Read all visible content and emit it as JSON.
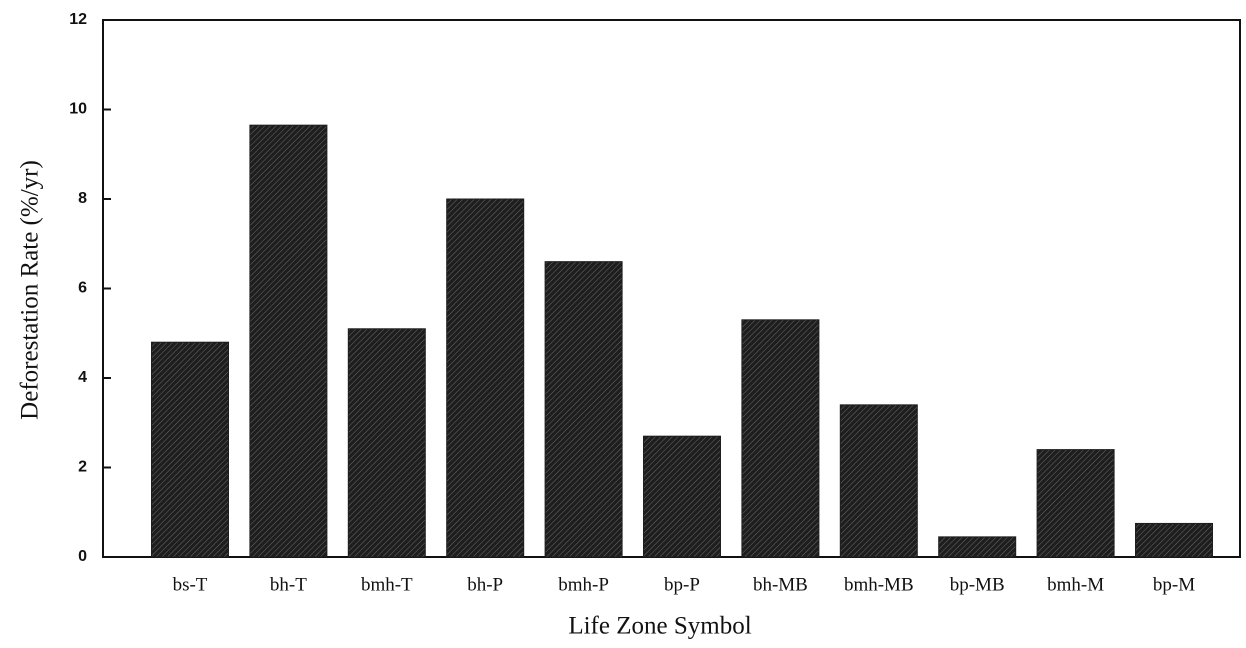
{
  "chart_data": {
    "type": "bar",
    "x_label": "Life Zone Symbol",
    "y_label": "Deforestation Rate (%/yr)",
    "categories": [
      "bs-T",
      "bh-T",
      "bmh-T",
      "bh-P",
      "bmh-P",
      "bp-P",
      "bh-MB",
      "bmh-MB",
      "bp-MB",
      "bmh-M",
      "bp-M"
    ],
    "values": [
      4.8,
      9.65,
      5.1,
      8.0,
      6.6,
      2.7,
      5.3,
      3.4,
      0.45,
      2.4,
      0.75
    ],
    "color": "#1e1e1e",
    "ylim": [
      0,
      12
    ],
    "yticks": [
      0,
      2,
      4,
      6,
      8,
      10,
      12
    ],
    "grid": false
  }
}
